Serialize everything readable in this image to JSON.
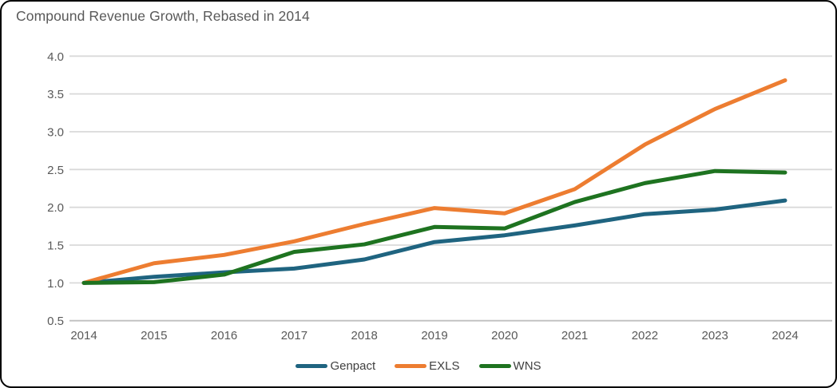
{
  "page": {
    "title": "Compound Revenue Growth, Rebased in 2014"
  },
  "chart_data": {
    "type": "line",
    "title": "Compound Revenue Growth, Rebased in 2014",
    "categories": [
      "2014",
      "2015",
      "2016",
      "2017",
      "2018",
      "2019",
      "2020",
      "2021",
      "2022",
      "2023",
      "2024"
    ],
    "series": [
      {
        "name": "Genpact",
        "color": "#1F6480",
        "values": [
          1.0,
          1.08,
          1.14,
          1.19,
          1.31,
          1.54,
          1.63,
          1.76,
          1.91,
          1.97,
          2.09
        ]
      },
      {
        "name": "EXLS",
        "color": "#ED7D31",
        "values": [
          1.0,
          1.26,
          1.37,
          1.55,
          1.78,
          1.99,
          1.92,
          2.24,
          2.83,
          3.3,
          3.68
        ]
      },
      {
        "name": "WNS",
        "color": "#1E7320",
        "values": [
          1.0,
          1.01,
          1.11,
          1.41,
          1.51,
          1.74,
          1.72,
          2.07,
          2.32,
          2.48,
          2.46
        ]
      }
    ],
    "xlabel": "",
    "ylabel": "",
    "ylim": [
      0.5,
      4.0
    ],
    "y_ticks": [
      "0.5",
      "1.0",
      "1.5",
      "2.0",
      "2.5",
      "3.0",
      "3.5",
      "4.0"
    ],
    "grid": true,
    "legend_position": "bottom"
  },
  "colors": {
    "gridline": "#D9D9D9",
    "axis_line": "#BFBFBF",
    "tick_text": "#595959",
    "title_text": "#595959",
    "legend_text": "#404040",
    "background": "#FFFFFF",
    "border": "#000000"
  }
}
